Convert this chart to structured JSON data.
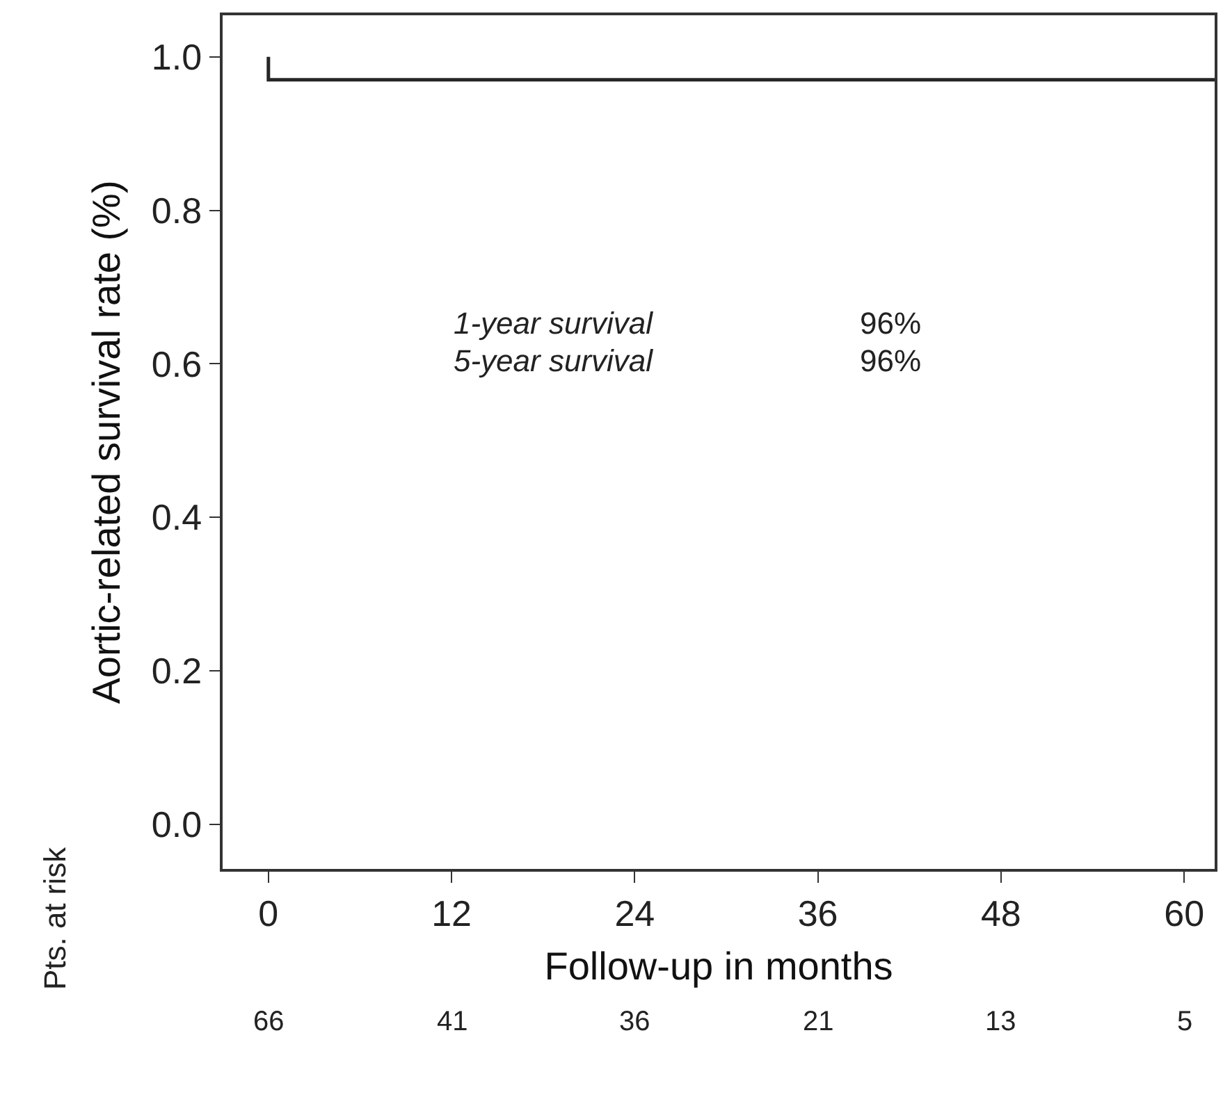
{
  "chart_data": {
    "type": "step",
    "xlabel": "Follow-up in months",
    "ylabel": "Aortic-related survival rate (%)",
    "x": [
      0,
      62
    ],
    "series": [
      {
        "color": "#262626",
        "values": [
          1.0,
          0.97
        ]
      }
    ],
    "xlim": [
      -3,
      62
    ],
    "xticks": [
      0,
      12,
      24,
      36,
      48,
      60
    ],
    "ylim": [
      -0.058,
      1.054
    ],
    "yticks": [
      {
        "value": 0,
        "label": "0.0"
      },
      0.2,
      0.4,
      0.6,
      0.8,
      {
        "value": 1,
        "label": "1.0"
      }
    ],
    "marker": "none",
    "line_style": "solid",
    "annotations": [
      "1-year survival",
      "96%",
      "5-year survival",
      "96%",
      "Pts. at risk",
      "66",
      "41",
      "36",
      "21",
      "13",
      "5"
    ]
  }
}
